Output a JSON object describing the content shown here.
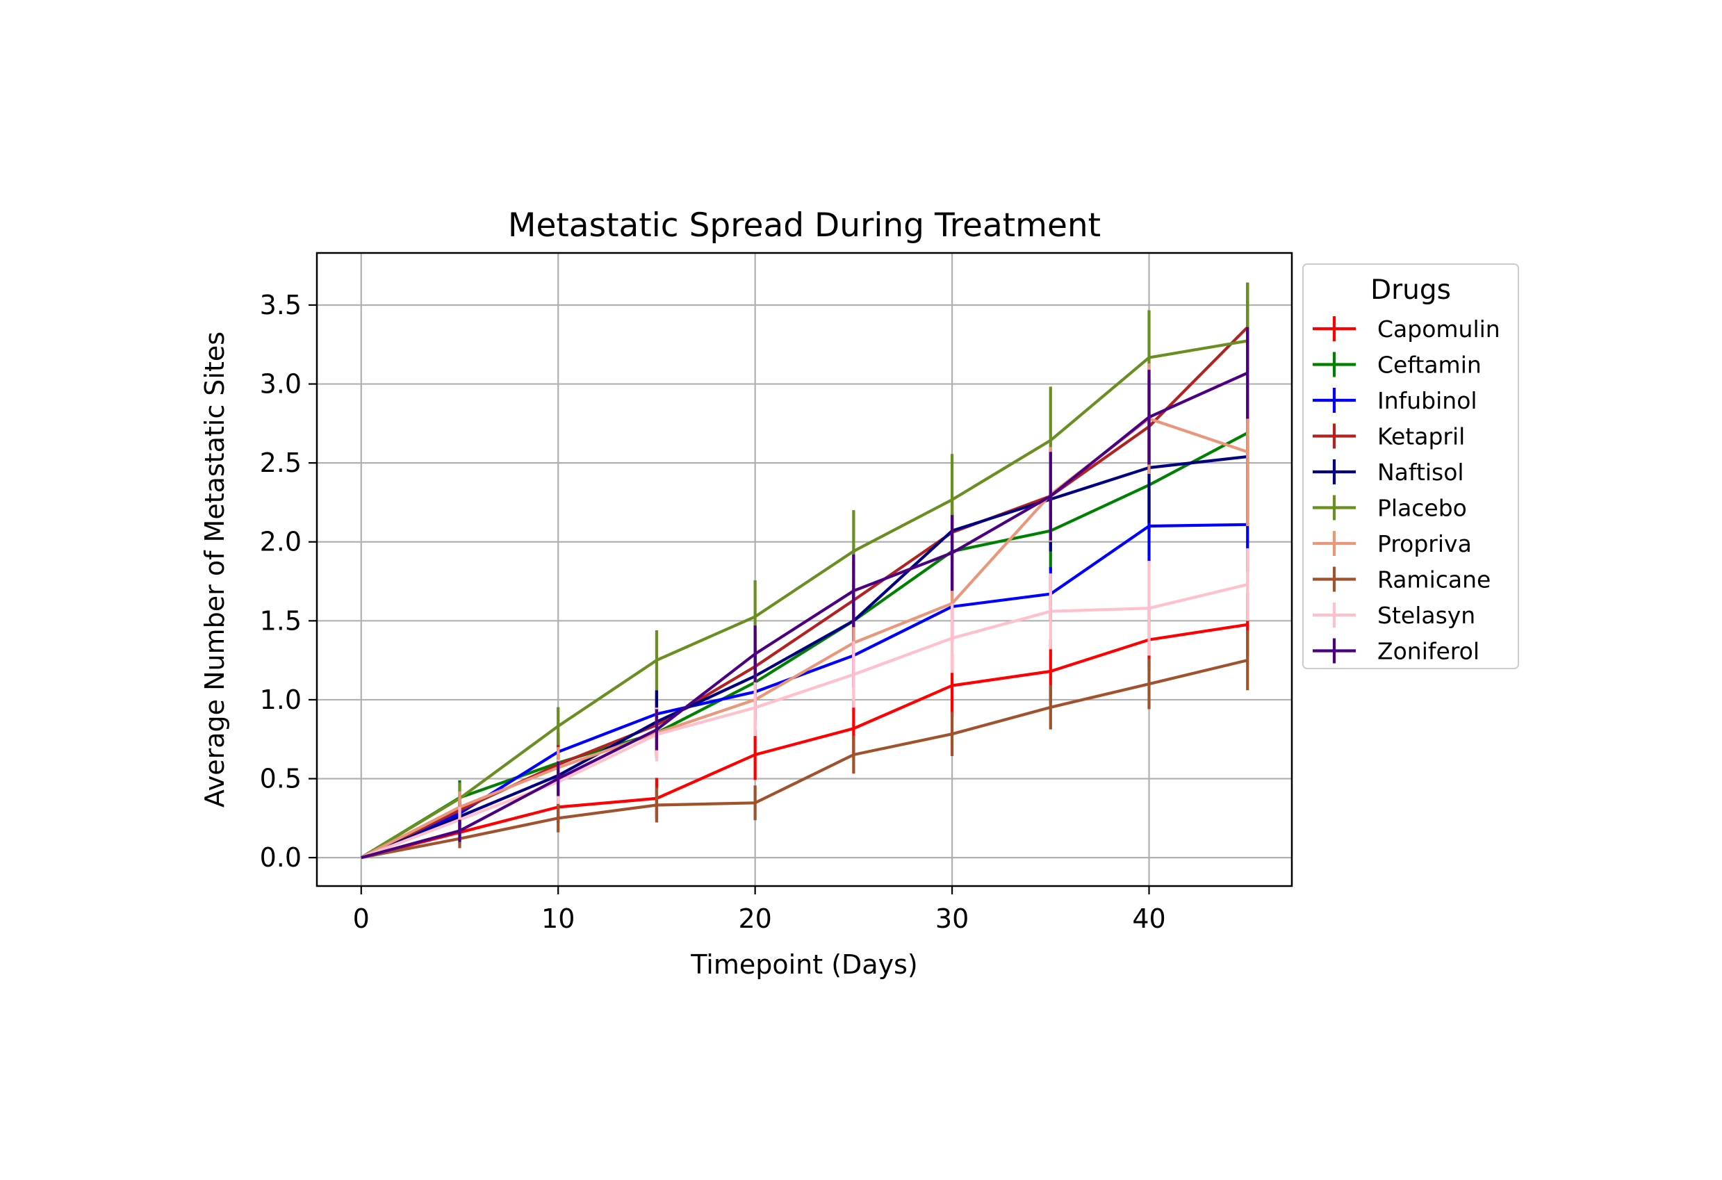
{
  "chart_data": {
    "type": "line",
    "title": "Metastatic Spread During Treatment",
    "xlabel": "Timepoint (Days)",
    "ylabel": "Average Number of Metastatic Sites",
    "xlim": [
      -2.25,
      47.25
    ],
    "ylim": [
      -0.18,
      3.83
    ],
    "xticks": [
      0,
      10,
      20,
      30,
      40
    ],
    "xtick_labels": [
      "0",
      "10",
      "20",
      "30",
      "40"
    ],
    "yticks": [
      0.0,
      0.5,
      1.0,
      1.5,
      2.0,
      2.5,
      3.0,
      3.5
    ],
    "ytick_labels": [
      "0.0",
      "0.5",
      "1.0",
      "1.5",
      "2.0",
      "2.5",
      "3.0",
      "3.5"
    ],
    "grid": true,
    "error_bars": true,
    "legend": {
      "title": "Drugs",
      "placement": "outside-right-top"
    },
    "x": [
      0,
      5,
      10,
      15,
      20,
      25,
      30,
      35,
      40,
      45
    ],
    "series": [
      {
        "name": "Capomulin",
        "color": "#ff0000",
        "values": [
          0.0,
          0.16,
          0.32,
          0.375,
          0.652,
          0.818,
          1.09,
          1.18,
          1.38,
          1.476
        ],
        "errors": [
          0.0,
          0.075,
          0.1,
          0.13,
          0.16,
          0.18,
          0.2,
          0.2,
          0.2,
          0.2
        ]
      },
      {
        "name": "Ceftamin",
        "color": "#008000",
        "values": [
          0.0,
          0.38,
          0.6,
          0.79,
          1.11,
          1.5,
          1.94,
          2.07,
          2.36,
          2.69
        ],
        "errors": [
          0.0,
          0.11,
          0.15,
          0.16,
          0.2,
          0.23,
          0.25,
          0.25,
          0.3,
          0.35
        ]
      },
      {
        "name": "Infubinol",
        "color": "#0000ff",
        "values": [
          0.0,
          0.28,
          0.67,
          0.91,
          1.05,
          1.28,
          1.59,
          1.67,
          2.1,
          2.11
        ],
        "errors": [
          0.0,
          0.08,
          0.12,
          0.15,
          0.18,
          0.2,
          0.22,
          0.17,
          0.23,
          0.3
        ]
      },
      {
        "name": "Ketapril",
        "color": "#b22222",
        "values": [
          0.0,
          0.3,
          0.59,
          0.84,
          1.21,
          1.63,
          2.06,
          2.29,
          2.73,
          3.36
        ],
        "errors": [
          0.0,
          0.1,
          0.15,
          0.19,
          0.22,
          0.25,
          0.23,
          0.26,
          0.3,
          0.28
        ]
      },
      {
        "name": "Naftisol",
        "color": "#000080",
        "values": [
          0.0,
          0.26,
          0.52,
          0.86,
          1.15,
          1.5,
          2.07,
          2.27,
          2.47,
          2.54
        ],
        "errors": [
          0.0,
          0.09,
          0.13,
          0.2,
          0.19,
          0.2,
          0.11,
          0.33,
          0.35,
          0.4
        ]
      },
      {
        "name": "Placebo",
        "color": "#6b8e23",
        "values": [
          0.0,
          0.375,
          0.833,
          1.25,
          1.526,
          1.941,
          2.267,
          2.643,
          3.167,
          3.273
        ],
        "errors": [
          0.0,
          0.1,
          0.12,
          0.19,
          0.23,
          0.26,
          0.29,
          0.34,
          0.3,
          0.37
        ]
      },
      {
        "name": "Propriva",
        "color": "#e9967a",
        "values": [
          0.0,
          0.32,
          0.57,
          0.79,
          1.0,
          1.36,
          1.61,
          2.3,
          2.78,
          2.57
        ],
        "errors": [
          0.0,
          0.1,
          0.13,
          0.15,
          0.17,
          0.23,
          0.25,
          0.3,
          0.35,
          0.47
        ]
      },
      {
        "name": "Ramicane",
        "color": "#a0522d",
        "values": [
          0.0,
          0.12,
          0.25,
          0.333,
          0.347,
          0.652,
          0.783,
          0.952,
          1.1,
          1.25
        ],
        "errors": [
          0.0,
          0.06,
          0.09,
          0.11,
          0.11,
          0.12,
          0.14,
          0.14,
          0.16,
          0.19
        ]
      },
      {
        "name": "Stelasyn",
        "color": "#ffc0cb",
        "values": [
          0.0,
          0.24,
          0.48,
          0.78,
          0.95,
          1.16,
          1.39,
          1.56,
          1.58,
          1.73
        ],
        "errors": [
          0.0,
          0.08,
          0.14,
          0.17,
          0.18,
          0.21,
          0.22,
          0.24,
          0.3,
          0.23
        ]
      },
      {
        "name": "Zoniferol",
        "color": "#4b0082",
        "values": [
          0.0,
          0.17,
          0.5,
          0.81,
          1.29,
          1.69,
          1.93,
          2.29,
          2.79,
          3.07
        ],
        "errors": [
          0.0,
          0.07,
          0.11,
          0.13,
          0.18,
          0.23,
          0.24,
          0.28,
          0.3,
          0.29
        ]
      }
    ]
  }
}
